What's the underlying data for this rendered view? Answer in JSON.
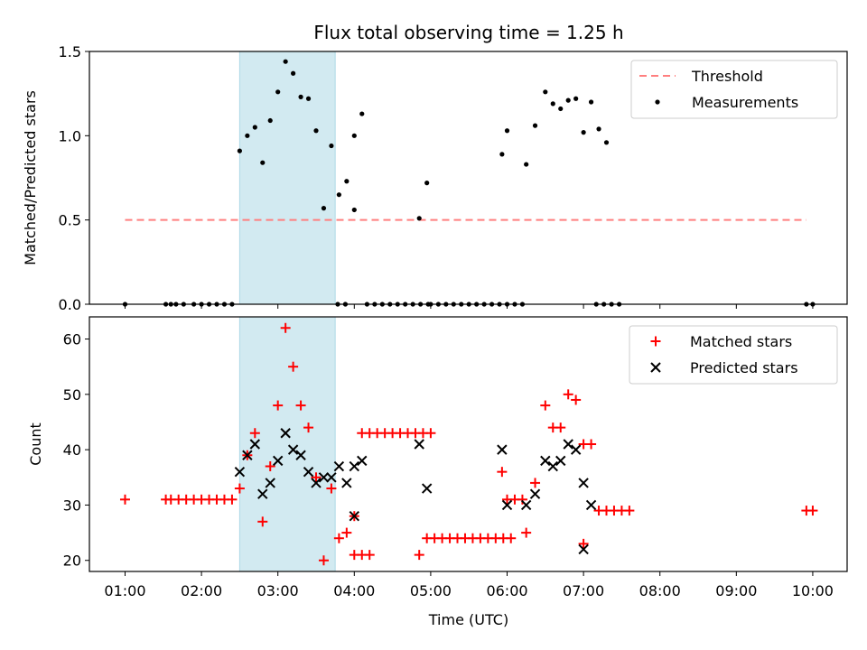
{
  "chart_data": [
    {
      "type": "scatter",
      "title": "Flux total observing time = 1.25 h",
      "ylabel": "Matched/Predicted stars",
      "xlabel": "",
      "xlim": [
        "00:32",
        "10:27"
      ],
      "ylim": [
        0,
        1.5
      ],
      "yticks": [
        "0.0",
        "0.5",
        "1.0",
        "1.5"
      ],
      "highlight_span": [
        "02:30",
        "03:45"
      ],
      "highlight_color": "#add8e6",
      "threshold": {
        "name": "Threshold",
        "y": 0.5,
        "x": [
          "01:00",
          "09:55"
        ],
        "color": "#ff7f7f",
        "style": "dashed"
      },
      "legend": {
        "position": "top-right",
        "entries": [
          "Threshold",
          "Measurements"
        ]
      },
      "series": [
        {
          "name": "Measurements",
          "marker": "dot",
          "color": "#000000",
          "points": [
            [
              "01:00",
              0
            ],
            [
              "01:32",
              0
            ],
            [
              "01:36",
              0
            ],
            [
              "01:40",
              0
            ],
            [
              "01:46",
              0
            ],
            [
              "01:54",
              0
            ],
            [
              "02:00",
              0
            ],
            [
              "02:06",
              0
            ],
            [
              "02:12",
              0
            ],
            [
              "02:18",
              0
            ],
            [
              "02:24",
              0
            ],
            [
              "02:30",
              0.91
            ],
            [
              "02:36",
              1.0
            ],
            [
              "02:42",
              1.05
            ],
            [
              "02:48",
              0.84
            ],
            [
              "02:54",
              1.09
            ],
            [
              "03:00",
              1.26
            ],
            [
              "03:06",
              1.44
            ],
            [
              "03:12",
              1.37
            ],
            [
              "03:18",
              1.23
            ],
            [
              "03:24",
              1.22
            ],
            [
              "03:30",
              1.03
            ],
            [
              "03:36",
              0.57
            ],
            [
              "03:42",
              0.94
            ],
            [
              "03:48",
              0.65
            ],
            [
              "03:54",
              0.73
            ],
            [
              "04:00",
              0.56
            ],
            [
              "03:47",
              0
            ],
            [
              "03:53",
              0
            ],
            [
              "04:00",
              1.0
            ],
            [
              "04:06",
              1.13
            ],
            [
              "04:10",
              0
            ],
            [
              "04:16",
              0
            ],
            [
              "04:22",
              0
            ],
            [
              "04:28",
              0
            ],
            [
              "04:34",
              0
            ],
            [
              "04:40",
              0
            ],
            [
              "04:46",
              0
            ],
            [
              "04:52",
              0
            ],
            [
              "04:58",
              0
            ],
            [
              "04:51",
              0.51
            ],
            [
              "04:57",
              0.72
            ],
            [
              "05:00",
              0
            ],
            [
              "05:06",
              0
            ],
            [
              "05:12",
              0
            ],
            [
              "05:18",
              0
            ],
            [
              "05:24",
              0
            ],
            [
              "05:30",
              0
            ],
            [
              "05:36",
              0
            ],
            [
              "05:42",
              0
            ],
            [
              "05:48",
              0
            ],
            [
              "05:54",
              0
            ],
            [
              "06:00",
              0
            ],
            [
              "05:56",
              0.89
            ],
            [
              "06:00",
              1.03
            ],
            [
              "06:06",
              0
            ],
            [
              "06:12",
              0
            ],
            [
              "06:15",
              0.83
            ],
            [
              "06:22",
              1.06
            ],
            [
              "06:30",
              1.26
            ],
            [
              "06:36",
              1.19
            ],
            [
              "06:42",
              1.16
            ],
            [
              "06:48",
              1.21
            ],
            [
              "06:54",
              1.22
            ],
            [
              "07:00",
              1.02
            ],
            [
              "07:06",
              1.2
            ],
            [
              "07:12",
              1.04
            ],
            [
              "07:18",
              0.96
            ],
            [
              "07:10",
              0
            ],
            [
              "07:16",
              0
            ],
            [
              "07:22",
              0
            ],
            [
              "07:28",
              0
            ],
            [
              "09:55",
              0
            ],
            [
              "10:00",
              0
            ]
          ]
        }
      ]
    },
    {
      "type": "scatter",
      "title": "",
      "ylabel": "Count",
      "xlabel": "Time (UTC)",
      "xlim": [
        "00:32",
        "10:27"
      ],
      "ylim": [
        18,
        64
      ],
      "yticks": [
        "20",
        "30",
        "40",
        "50",
        "60"
      ],
      "xticks": [
        "01:00",
        "02:00",
        "03:00",
        "04:00",
        "05:00",
        "06:00",
        "07:00",
        "08:00",
        "09:00",
        "10:00"
      ],
      "highlight_span": [
        "02:30",
        "03:45"
      ],
      "highlight_color": "#add8e6",
      "legend": {
        "position": "top-right",
        "entries": [
          "Matched stars",
          "Predicted stars"
        ]
      },
      "series": [
        {
          "name": "Matched stars",
          "marker": "plus",
          "color": "#ff0000",
          "points": [
            [
              "01:00",
              31
            ],
            [
              "01:32",
              31
            ],
            [
              "01:36",
              31
            ],
            [
              "01:42",
              31
            ],
            [
              "01:48",
              31
            ],
            [
              "01:54",
              31
            ],
            [
              "02:00",
              31
            ],
            [
              "02:06",
              31
            ],
            [
              "02:12",
              31
            ],
            [
              "02:18",
              31
            ],
            [
              "02:24",
              31
            ],
            [
              "02:30",
              33
            ],
            [
              "02:36",
              39
            ],
            [
              "02:42",
              43
            ],
            [
              "02:48",
              27
            ],
            [
              "02:54",
              37
            ],
            [
              "03:00",
              48
            ],
            [
              "03:06",
              62
            ],
            [
              "03:12",
              55
            ],
            [
              "03:18",
              48
            ],
            [
              "03:24",
              44
            ],
            [
              "03:30",
              35
            ],
            [
              "03:36",
              20
            ],
            [
              "03:42",
              33
            ],
            [
              "03:48",
              24
            ],
            [
              "03:54",
              25
            ],
            [
              "04:00",
              21
            ],
            [
              "04:06",
              21
            ],
            [
              "04:12",
              21
            ],
            [
              "04:00",
              28
            ],
            [
              "04:06",
              43
            ],
            [
              "04:12",
              43
            ],
            [
              "04:18",
              43
            ],
            [
              "04:24",
              43
            ],
            [
              "04:30",
              43
            ],
            [
              "04:36",
              43
            ],
            [
              "04:42",
              43
            ],
            [
              "04:48",
              43
            ],
            [
              "04:54",
              43
            ],
            [
              "05:00",
              43
            ],
            [
              "04:51",
              21
            ],
            [
              "04:57",
              24
            ],
            [
              "05:03",
              24
            ],
            [
              "05:09",
              24
            ],
            [
              "05:15",
              24
            ],
            [
              "05:21",
              24
            ],
            [
              "05:27",
              24
            ],
            [
              "05:33",
              24
            ],
            [
              "05:39",
              24
            ],
            [
              "05:45",
              24
            ],
            [
              "05:51",
              24
            ],
            [
              "05:57",
              24
            ],
            [
              "06:03",
              24
            ],
            [
              "05:56",
              36
            ],
            [
              "06:00",
              31
            ],
            [
              "06:06",
              31
            ],
            [
              "06:12",
              31
            ],
            [
              "06:15",
              25
            ],
            [
              "06:22",
              34
            ],
            [
              "06:30",
              48
            ],
            [
              "06:36",
              44
            ],
            [
              "06:42",
              44
            ],
            [
              "06:48",
              50
            ],
            [
              "06:54",
              49
            ],
            [
              "07:00",
              41
            ],
            [
              "07:06",
              41
            ],
            [
              "07:00",
              23
            ],
            [
              "07:12",
              29
            ],
            [
              "07:18",
              29
            ],
            [
              "07:24",
              29
            ],
            [
              "07:30",
              29
            ],
            [
              "07:36",
              29
            ],
            [
              "09:55",
              29
            ],
            [
              "10:00",
              29
            ]
          ]
        },
        {
          "name": "Predicted stars",
          "marker": "x",
          "color": "#000000",
          "points": [
            [
              "02:30",
              36
            ],
            [
              "02:36",
              39
            ],
            [
              "02:42",
              41
            ],
            [
              "02:48",
              32
            ],
            [
              "02:54",
              34
            ],
            [
              "03:00",
              38
            ],
            [
              "03:06",
              43
            ],
            [
              "03:12",
              40
            ],
            [
              "03:18",
              39
            ],
            [
              "03:24",
              36
            ],
            [
              "03:30",
              34
            ],
            [
              "03:36",
              35
            ],
            [
              "03:42",
              35
            ],
            [
              "03:48",
              37
            ],
            [
              "03:54",
              34
            ],
            [
              "04:00",
              37
            ],
            [
              "04:00",
              28
            ],
            [
              "04:06",
              38
            ],
            [
              "04:51",
              41
            ],
            [
              "04:57",
              33
            ],
            [
              "05:56",
              40
            ],
            [
              "06:00",
              30
            ],
            [
              "06:15",
              30
            ],
            [
              "06:22",
              32
            ],
            [
              "06:30",
              38
            ],
            [
              "06:36",
              37
            ],
            [
              "06:42",
              38
            ],
            [
              "06:48",
              41
            ],
            [
              "06:54",
              40
            ],
            [
              "07:00",
              34
            ],
            [
              "07:00",
              22
            ],
            [
              "07:06",
              30
            ]
          ]
        }
      ]
    }
  ]
}
